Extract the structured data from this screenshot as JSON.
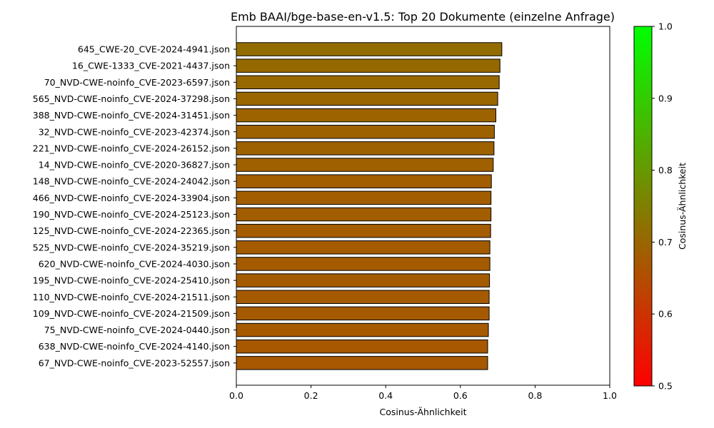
{
  "chart_data": {
    "type": "bar",
    "orientation": "horizontal",
    "title": "Emb BAAI/bge-base-en-v1.5: Top 20 Dokumente (einzelne Anfrage)",
    "xlabel": "Cosinus-Ähnlichkeit",
    "ylabel": "",
    "xlim": [
      0,
      1
    ],
    "x_ticks": [
      "0.0",
      "0.2",
      "0.4",
      "0.6",
      "0.8",
      "1.0"
    ],
    "grid": false,
    "categories": [
      "645_CWE-20_CVE-2024-4941.json",
      "16_CWE-1333_CVE-2021-4437.json",
      "70_NVD-CWE-noinfo_CVE-2023-6597.json",
      "565_NVD-CWE-noinfo_CVE-2024-37298.json",
      "388_NVD-CWE-noinfo_CVE-2024-31451.json",
      "32_NVD-CWE-noinfo_CVE-2023-42374.json",
      "221_NVD-CWE-noinfo_CVE-2024-26152.json",
      "14_NVD-CWE-noinfo_CVE-2020-36827.json",
      "148_NVD-CWE-noinfo_CVE-2024-24042.json",
      "466_NVD-CWE-noinfo_CVE-2024-33904.json",
      "190_NVD-CWE-noinfo_CVE-2024-25123.json",
      "125_NVD-CWE-noinfo_CVE-2024-22365.json",
      "525_NVD-CWE-noinfo_CVE-2024-35219.json",
      "620_NVD-CWE-noinfo_CVE-2024-4030.json",
      "195_NVD-CWE-noinfo_CVE-2024-25410.json",
      "110_NVD-CWE-noinfo_CVE-2024-21511.json",
      "109_NVD-CWE-noinfo_CVE-2024-21509.json",
      "75_NVD-CWE-noinfo_CVE-2024-0440.json",
      "638_NVD-CWE-noinfo_CVE-2024-4140.json",
      "67_NVD-CWE-noinfo_CVE-2023-52557.json"
    ],
    "values": [
      0.711,
      0.706,
      0.704,
      0.7,
      0.695,
      0.691,
      0.69,
      0.688,
      0.683,
      0.682,
      0.682,
      0.681,
      0.679,
      0.679,
      0.678,
      0.677,
      0.677,
      0.675,
      0.673,
      0.673
    ],
    "bar_edge_color": "#000000",
    "colorbar": {
      "label": "Cosinus-Ähnlichkeit",
      "range": [
        0.5,
        1.0
      ],
      "ticks": [
        "0.5",
        "0.6",
        "0.7",
        "0.8",
        "0.9",
        "1.0"
      ],
      "color_low": "#ff0000",
      "color_high": "#00ff00"
    }
  }
}
